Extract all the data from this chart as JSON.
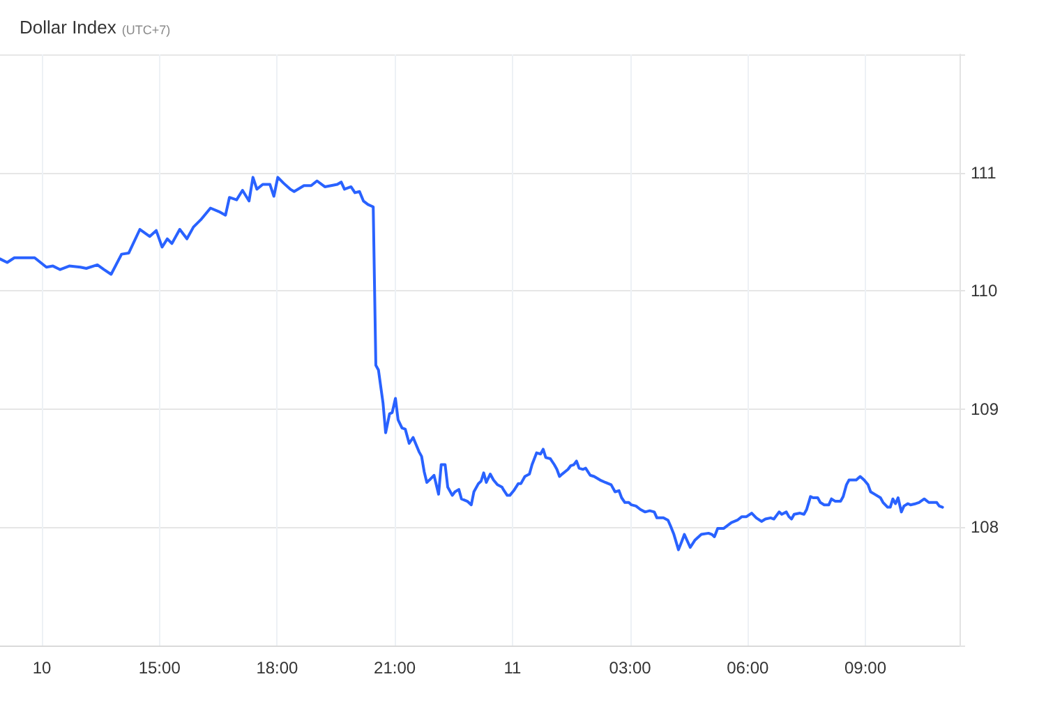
{
  "chart_data": {
    "type": "line",
    "title": "Dollar Index",
    "subtitle": "(UTC+7)",
    "x": [
      "--11-10T10:56",
      "--11-10T11:07",
      "--11-10T11:18",
      "--11-10T11:39",
      "--11-10T11:49",
      "--11-10T12:07",
      "--11-10T12:17",
      "--11-10T12:28",
      "--11-10T12:42",
      "--11-10T12:59",
      "--11-10T13:08",
      "--11-10T13:25",
      "--11-10T13:35",
      "--11-10T13:46",
      "--11-10T14:02",
      "--11-10T14:13",
      "--11-10T14:30",
      "--11-10T14:45",
      "--11-10T14:55",
      "--11-10T15:04",
      "--11-10T15:12",
      "--11-10T15:19",
      "--11-10T15:31",
      "--11-10T15:42",
      "--11-10T15:52",
      "--11-10T16:03",
      "--11-10T16:18",
      "--11-10T16:31",
      "--11-10T16:41",
      "--11-10T16:47",
      "--11-10T16:58",
      "--11-10T17:07",
      "--11-10T17:17",
      "--11-10T17:23",
      "--11-10T17:29",
      "--11-10T17:38",
      "--11-10T17:49",
      "--11-10T17:55",
      "--11-10T18:01",
      "--11-10T18:10",
      "--11-10T18:20",
      "--11-10T18:26",
      "--11-10T18:41",
      "--11-10T18:52",
      "--11-10T19:01",
      "--11-10T19:13",
      "--11-10T19:32",
      "--11-10T19:38",
      "--11-10T19:43",
      "--11-10T19:53",
      "--11-10T19:59",
      "--11-10T20:06",
      "--11-10T20:12",
      "--11-10T20:19",
      "--11-10T20:27",
      "--11-10T20:31",
      "--11-10T20:35",
      "--11-10T20:42",
      "--11-10T20:46",
      "--11-10T20:52",
      "--11-10T20:56",
      "--11-10T21:01",
      "--11-10T21:05",
      "--11-10T21:11",
      "--11-10T21:16",
      "--11-10T21:22",
      "--11-10T21:28",
      "--11-10T21:37",
      "--11-10T21:41",
      "--11-10T21:45",
      "--11-10T21:49",
      "--11-10T21:53",
      "--11-10T22:00",
      "--11-10T22:07",
      "--11-10T22:11",
      "--11-10T22:17",
      "--11-10T22:21",
      "--11-10T22:28",
      "--11-10T22:32",
      "--11-10T22:38",
      "--11-10T22:42",
      "--11-10T22:51",
      "--11-10T22:57",
      "--11-10T23:01",
      "--11-10T23:08",
      "--11-10T23:12",
      "--11-10T23:16",
      "--11-10T23:20",
      "--11-10T23:26",
      "--11-10T23:31",
      "--11-10T23:37",
      "--11-10T23:44",
      "--11-10T23:46",
      "--11-10T23:52",
      "--11-10T23:56",
      "--11-11T00:02",
      "--11-11T00:09",
      "--11-11T00:13",
      "--11-11T00:19",
      "--11-11T00:26",
      "--11-11T00:30",
      "--11-11T00:37",
      "--11-11T00:43",
      "--11-11T00:47",
      "--11-11T00:51",
      "--11-11T00:58",
      "--11-11T01:04",
      "--11-11T01:08",
      "--11-11T01:12",
      "--11-11T01:16",
      "--11-11T01:25",
      "--11-11T01:29",
      "--11-11T01:34",
      "--11-11T01:38",
      "--11-11T01:42",
      "--11-11T01:48",
      "--11-11T01:52",
      "--11-11T01:59",
      "--11-11T02:05",
      "--11-11T02:14",
      "--11-11T02:22",
      "--11-11T02:31",
      "--11-11T02:37",
      "--11-11T02:43",
      "--11-11T02:47",
      "--11-11T02:52",
      "--11-11T02:58",
      "--11-11T03:02",
      "--11-11T03:09",
      "--11-11T03:16",
      "--11-11T03:23",
      "--11-11T03:30",
      "--11-11T03:37",
      "--11-11T03:41",
      "--11-11T03:51",
      "--11-11T03:58",
      "--11-11T04:02",
      "--11-11T04:07",
      "--11-11T04:14",
      "--11-11T04:19",
      "--11-11T04:23",
      "--11-11T04:32",
      "--11-11T04:39",
      "--11-11T04:49",
      "--11-11T05:00",
      "--11-11T05:05",
      "--11-11T05:09",
      "--11-11T05:14",
      "--11-11T05:23",
      "--11-11T05:35",
      "--11-11T05:44",
      "--11-11T05:51",
      "--11-11T05:58",
      "--11-11T06:06",
      "--11-11T06:13",
      "--11-11T06:21",
      "--11-11T06:27",
      "--11-11T06:35",
      "--11-11T06:40",
      "--11-11T06:48",
      "--11-11T06:52",
      "--11-11T06:59",
      "--11-11T07:03",
      "--11-11T07:07",
      "--11-11T07:11",
      "--11-11T07:20",
      "--11-11T07:26",
      "--11-11T07:30",
      "--11-11T07:36",
      "--11-11T07:40",
      "--11-11T07:47",
      "--11-11T07:51",
      "--11-11T07:57",
      "--11-11T08:04",
      "--11-11T08:08",
      "--11-11T08:14",
      "--11-11T08:22",
      "--11-11T08:26",
      "--11-11T08:31",
      "--11-11T08:35",
      "--11-11T08:46",
      "--11-11T08:52",
      "--11-11T08:58",
      "--11-11T09:04",
      "--11-11T09:08",
      "--11-11T09:14",
      "--11-11T09:23",
      "--11-11T09:27",
      "--11-11T09:34",
      "--11-11T09:38",
      "--11-11T09:42",
      "--11-11T09:46",
      "--11-11T09:50",
      "--11-11T09:55",
      "--11-11T09:59",
      "--11-11T10:05",
      "--11-11T10:09",
      "--11-11T10:17",
      "--11-11T10:22",
      "--11-11T10:30",
      "--11-11T10:37",
      "--11-11T10:41",
      "--11-11T10:49",
      "--11-11T10:53",
      "--11-11T10:58"
    ],
    "series": [
      {
        "color": "#2962ff",
        "values": [
          110.27,
          110.24,
          110.28,
          110.28,
          110.28,
          110.2,
          110.21,
          110.18,
          110.21,
          110.2,
          110.19,
          110.22,
          110.18,
          110.14,
          110.31,
          110.32,
          110.52,
          110.46,
          110.51,
          110.37,
          110.44,
          110.4,
          110.52,
          110.44,
          110.54,
          110.6,
          110.7,
          110.67,
          110.64,
          110.79,
          110.77,
          110.85,
          110.76,
          110.96,
          110.86,
          110.9,
          110.9,
          110.8,
          110.96,
          110.91,
          110.86,
          110.84,
          110.89,
          110.89,
          110.93,
          110.88,
          110.9,
          110.92,
          110.86,
          110.88,
          110.83,
          110.84,
          110.76,
          110.73,
          110.71,
          109.37,
          109.33,
          109.05,
          108.8,
          108.96,
          108.97,
          109.09,
          108.91,
          108.84,
          108.83,
          108.71,
          108.76,
          108.64,
          108.6,
          108.47,
          108.38,
          108.4,
          108.44,
          108.28,
          108.53,
          108.53,
          108.34,
          108.27,
          108.3,
          108.32,
          108.24,
          108.22,
          108.19,
          108.3,
          108.37,
          108.39,
          108.46,
          108.38,
          108.45,
          108.4,
          108.36,
          108.34,
          108.32,
          108.27,
          108.27,
          108.31,
          108.37,
          108.37,
          108.43,
          108.45,
          108.53,
          108.63,
          108.62,
          108.66,
          108.59,
          108.58,
          108.53,
          108.49,
          108.43,
          108.45,
          108.49,
          108.52,
          108.53,
          108.56,
          108.5,
          108.49,
          108.5,
          108.44,
          108.43,
          108.4,
          108.38,
          108.36,
          108.3,
          108.31,
          108.25,
          108.21,
          108.21,
          108.19,
          108.18,
          108.15,
          108.13,
          108.14,
          108.13,
          108.08,
          108.08,
          108.06,
          108.01,
          107.94,
          107.81,
          107.88,
          107.94,
          107.83,
          107.89,
          107.94,
          107.95,
          107.94,
          107.92,
          107.99,
          107.99,
          108.04,
          108.06,
          108.09,
          108.09,
          108.12,
          108.08,
          108.05,
          108.07,
          108.08,
          108.07,
          108.13,
          108.11,
          108.13,
          108.09,
          108.07,
          108.11,
          108.12,
          108.11,
          108.15,
          108.26,
          108.25,
          108.25,
          108.21,
          108.19,
          108.19,
          108.24,
          108.22,
          108.22,
          108.26,
          108.36,
          108.4,
          108.4,
          108.43,
          108.4,
          108.36,
          108.3,
          108.28,
          108.25,
          108.21,
          108.17,
          108.17,
          108.24,
          108.2,
          108.25,
          108.13,
          108.18,
          108.2,
          108.19,
          108.2,
          108.21,
          108.24,
          108.21,
          108.21,
          108.21,
          108.18,
          108.17
        ]
      }
    ],
    "xlim": [
      "--11-10T10:56",
      "--11-11T11:24"
    ],
    "xticks": [
      {
        "value": "--11-10T12:00",
        "label": "10"
      },
      {
        "value": "--11-10T15:00",
        "label": "15:00"
      },
      {
        "value": "--11-10T18:00",
        "label": "18:00"
      },
      {
        "value": "--11-10T21:00",
        "label": "21:00"
      },
      {
        "value": "--11-11T00:00",
        "label": "11"
      },
      {
        "value": "--11-11T03:00",
        "label": "03:00"
      },
      {
        "value": "--11-11T06:00",
        "label": "06:00"
      },
      {
        "value": "--11-11T09:00",
        "label": "09:00"
      }
    ],
    "ylim": [
      107,
      112
    ],
    "yticks": [
      {
        "value": 107,
        "label": null
      },
      108,
      109,
      110,
      111,
      {
        "value": 112,
        "label": null
      }
    ],
    "grid": true,
    "line_style": "solid"
  }
}
